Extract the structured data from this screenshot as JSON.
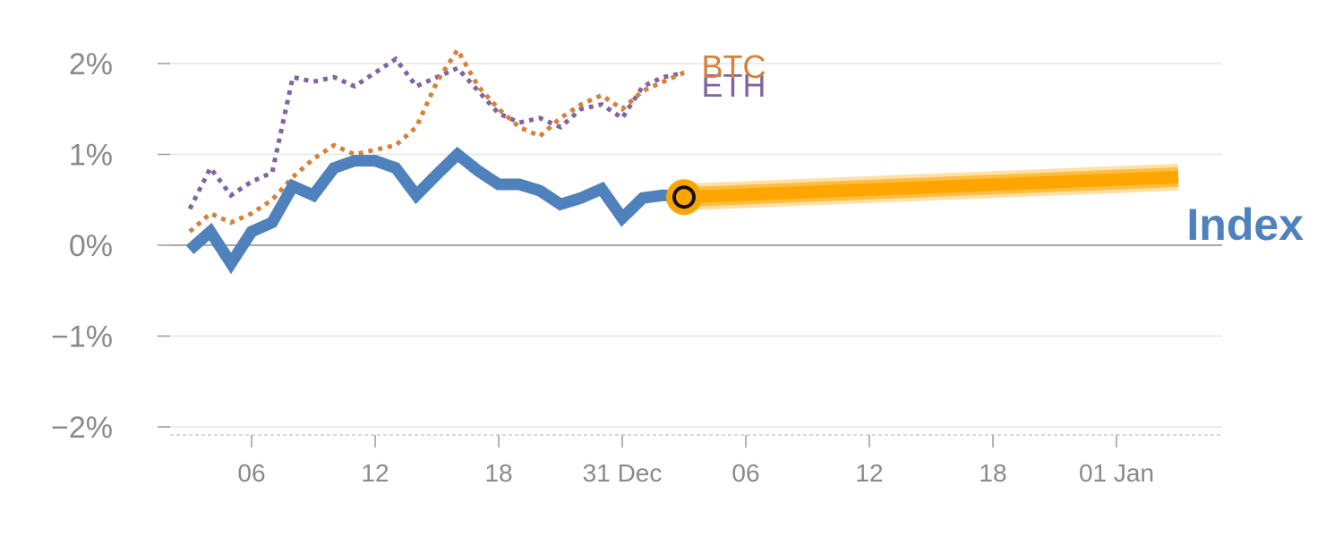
{
  "chart_data": {
    "type": "line",
    "title": "",
    "xlabel": "",
    "ylabel": "",
    "ylim": [
      -2,
      2
    ],
    "xlim": [
      0,
      52
    ],
    "y_ticks": [
      {
        "value": 2,
        "label": "2%"
      },
      {
        "value": 1,
        "label": "1%"
      },
      {
        "value": 0,
        "label": "0%"
      },
      {
        "value": -1,
        "label": "−1%"
      },
      {
        "value": -2,
        "label": "−2%"
      }
    ],
    "x_ticks": [
      {
        "value": 3,
        "label": "06"
      },
      {
        "value": 9,
        "label": "12"
      },
      {
        "value": 15,
        "label": "18"
      },
      {
        "value": 21,
        "label": "31 Dec"
      },
      {
        "value": 27,
        "label": "06"
      },
      {
        "value": 33,
        "label": "12"
      },
      {
        "value": 39,
        "label": "18"
      },
      {
        "value": 45,
        "label": "01 Jan"
      }
    ],
    "grid": true,
    "zero_line": true,
    "series": [
      {
        "name": "ETH",
        "style": "dotted",
        "color": "#8064a2",
        "label_at": 24.5,
        "x": [
          0,
          1,
          2,
          3,
          4,
          5,
          6,
          7,
          8,
          9,
          10,
          11,
          12,
          13,
          14,
          15,
          16,
          17,
          18,
          19,
          20,
          21,
          22,
          23,
          24
        ],
        "y": [
          0.4,
          0.85,
          0.55,
          0.7,
          0.8,
          1.85,
          1.8,
          1.85,
          1.75,
          1.9,
          2.05,
          1.75,
          1.85,
          1.95,
          1.7,
          1.45,
          1.35,
          1.4,
          1.3,
          1.5,
          1.55,
          1.4,
          1.75,
          1.85,
          1.9
        ]
      },
      {
        "name": "BTC",
        "style": "dotted",
        "color": "#d4823a",
        "label_at": 24.5,
        "x": [
          0,
          1,
          2,
          3,
          4,
          5,
          6,
          7,
          8,
          9,
          10,
          11,
          12,
          13,
          14,
          15,
          16,
          17,
          18,
          19,
          20,
          21,
          22,
          23,
          24
        ],
        "y": [
          0.15,
          0.35,
          0.25,
          0.35,
          0.5,
          0.75,
          0.95,
          1.1,
          1.0,
          1.05,
          1.1,
          1.3,
          1.8,
          2.15,
          1.75,
          1.5,
          1.3,
          1.2,
          1.4,
          1.55,
          1.65,
          1.5,
          1.7,
          1.8,
          1.9
        ]
      },
      {
        "name": "Index",
        "style": "solid",
        "color": "#4f81bd",
        "x": [
          0,
          1,
          2,
          3,
          4,
          5,
          6,
          7,
          8,
          9,
          10,
          11,
          12,
          13,
          14,
          15,
          16,
          17,
          18,
          19,
          20,
          21,
          22,
          23,
          24
        ],
        "y": [
          -0.05,
          0.15,
          -0.2,
          0.15,
          0.25,
          0.65,
          0.55,
          0.85,
          0.93,
          0.93,
          0.85,
          0.55,
          0.78,
          1.0,
          0.82,
          0.67,
          0.67,
          0.6,
          0.45,
          0.52,
          0.62,
          0.3,
          0.52,
          0.55,
          0.53
        ]
      }
    ],
    "projection": {
      "color": "#ffa500",
      "x": [
        24,
        48
      ],
      "y": [
        0.53,
        0.75
      ]
    },
    "marker": {
      "x": 24,
      "y": 0.53
    }
  }
}
